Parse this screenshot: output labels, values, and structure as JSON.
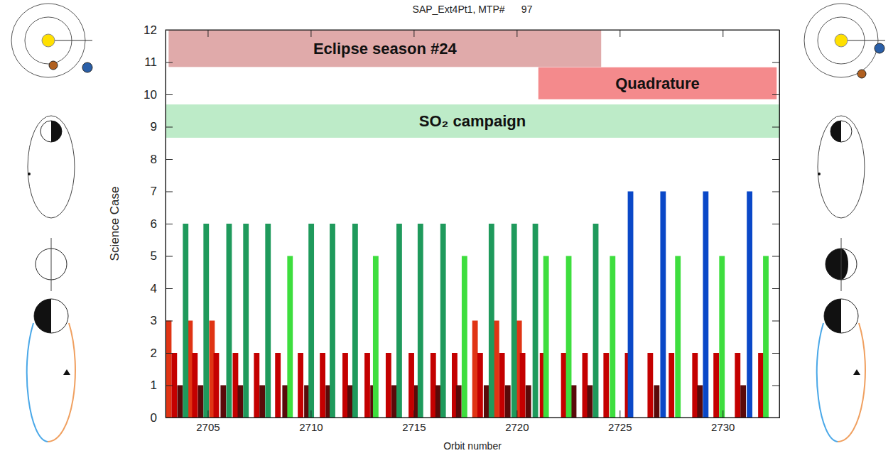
{
  "chart_data": {
    "type": "bar",
    "title": "SAP_Ext4Pt1, MTP#      97",
    "x_label": "Orbit number",
    "y_label": "Science Case",
    "xlim": [
      2702.95,
      2732.75
    ],
    "xticks": [
      2705,
      2710,
      2715,
      2720,
      2725,
      2730
    ],
    "ylim": [
      0,
      12
    ],
    "yticks": [
      0,
      1,
      2,
      3,
      4,
      5,
      6,
      7,
      8,
      9,
      10,
      11,
      12
    ],
    "grid": false,
    "annotations": [
      {
        "label": "Eclipse season #24",
        "x0": 2703.1,
        "x1": 2724.1,
        "y0": 10.85,
        "y1": 12,
        "color": "#e0aaaa"
      },
      {
        "label": "Quadrature",
        "x0": 2721.05,
        "x1": 2732.62,
        "y0": 9.85,
        "y1": 10.84,
        "color": "#f48a8c"
      },
      {
        "label": "SO₂ campaign",
        "x0": 2702.95,
        "x1": 2732.75,
        "y0": 8.66,
        "y1": 9.69,
        "color": "#bdebc8"
      }
    ],
    "series": [
      {
        "color": "#e03414",
        "x": [
          2702.97,
          2704.0,
          2705.07,
          2717.84,
          2718.88,
          2719.98
        ],
        "values": [
          3,
          3,
          3,
          3,
          3,
          3
        ]
      },
      {
        "color": "#c40000",
        "x": [
          2703.24,
          2704.24,
          2705.28,
          2706.21,
          2707.24,
          2708.27,
          2709.37,
          2710.44,
          2711.54,
          2712.61,
          2713.64,
          2714.75,
          2715.81,
          2716.85,
          2718.09,
          2719.15,
          2720.15,
          2721.12,
          2722.15,
          2723.18,
          2724.21,
          2725.25,
          2726.35,
          2727.38,
          2728.52,
          2729.55,
          2730.59,
          2731.72
        ],
        "values": [
          2,
          2,
          2,
          2,
          2,
          2,
          2,
          2,
          2,
          2,
          2,
          2,
          2,
          2,
          2,
          2,
          2,
          2,
          2,
          2,
          2,
          2,
          2,
          2,
          2,
          2,
          2,
          2
        ]
      },
      {
        "color": "#5a0a0a",
        "x": [
          2703.52,
          2704.52,
          2705.62,
          2706.45,
          2707.51,
          2708.62,
          2709.68,
          2710.72,
          2711.78,
          2712.89,
          2713.92,
          2715.02,
          2716.05,
          2717.05,
          2718.4,
          2719.43,
          2720.43,
          2722.63,
          2723.42,
          2726.66,
          2728.76,
          2730.86
        ],
        "values": [
          1,
          1,
          1,
          1,
          1,
          1,
          1,
          1,
          1,
          1,
          1,
          1,
          1,
          1,
          1,
          1,
          1,
          1,
          1,
          1,
          1,
          1
        ]
      },
      {
        "color": "#1f9a5c",
        "x": [
          2703.79,
          2704.79,
          2705.9,
          2706.72,
          2707.79,
          2709.89,
          2710.92,
          2712.02,
          2714.16,
          2715.19,
          2716.29,
          2718.64,
          2719.74,
          2720.77,
          2723.7
        ],
        "values": [
          6,
          6,
          6,
          6,
          6,
          6,
          6,
          6,
          6,
          6,
          6,
          6,
          6,
          6,
          6
        ]
      },
      {
        "color": "#3ede3e",
        "x": [
          2708.86,
          2713.02,
          2717.33,
          2721.29,
          2722.39,
          2724.52,
          2727.69,
          2729.83,
          2731.96
        ],
        "values": [
          5,
          5,
          5,
          5,
          5,
          5,
          5,
          5,
          5
        ]
      },
      {
        "color": "#0a48c8",
        "x": [
          2725.39,
          2726.97,
          2729.04,
          2731.17
        ],
        "values": [
          7,
          7,
          7,
          7
        ]
      }
    ]
  }
}
